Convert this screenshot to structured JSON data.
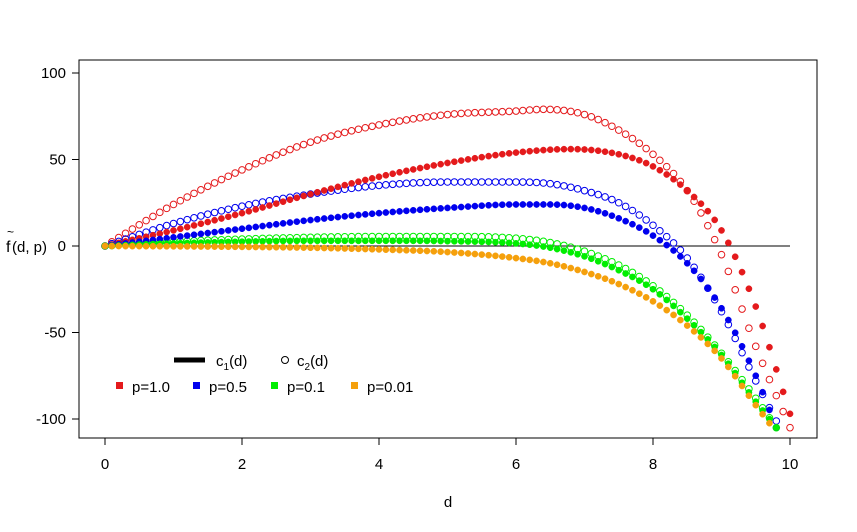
{
  "chart_data": {
    "type": "scatter",
    "title": "",
    "xlabel": "d",
    "ylabel_main": "f",
    "ylabel_tilde": "~",
    "ylabel_args": "(d, p)",
    "xlim": [
      0,
      10
    ],
    "ylim": [
      -105,
      105
    ],
    "x_ticks": [
      0,
      2,
      4,
      6,
      8,
      10
    ],
    "x_tick_labels": [
      "0",
      "2",
      "4",
      "6",
      "8",
      "10"
    ],
    "y_ticks": [
      -100,
      -50,
      0,
      50,
      100
    ],
    "y_tick_labels": [
      "-100",
      "-50",
      "0",
      "50",
      "100"
    ],
    "reference_line_y": 0,
    "legend_type": {
      "line_label": {
        "base": "c",
        "sub": "1",
        "rest": "(d)"
      },
      "point_label": {
        "base": "c",
        "sub": "2",
        "rest": "(d)"
      }
    },
    "series": [
      {
        "name": "p=1.0",
        "color": "#e41a1c",
        "c1": {
          "x": [
            0,
            1,
            2,
            3,
            4,
            5,
            6,
            6.8,
            7.5,
            8,
            8.5,
            9,
            9.5,
            10
          ],
          "y": [
            0,
            9,
            19,
            30,
            40,
            48,
            54,
            56,
            53,
            46,
            32,
            9,
            -35,
            -97
          ]
        },
        "c2": {
          "x": [
            0,
            1,
            2,
            3,
            4,
            5,
            6,
            6.4,
            7,
            7.5,
            8,
            8.5,
            9,
            9.5,
            10
          ],
          "y": [
            0,
            24,
            44,
            60,
            70,
            76,
            78,
            79,
            76,
            67,
            53,
            32,
            -5,
            -58,
            -105
          ]
        }
      },
      {
        "name": "p=0.5",
        "color": "#0000ee",
        "c1": {
          "x": [
            0,
            1,
            2,
            3,
            4,
            5,
            6,
            6.5,
            7,
            7.5,
            8,
            8.5,
            9,
            9.5,
            9.8
          ],
          "y": [
            0,
            5,
            10,
            15,
            19,
            22,
            24,
            24,
            22,
            16,
            6,
            -10,
            -36,
            -75,
            -105
          ]
        },
        "c2": {
          "x": [
            0,
            1,
            2,
            3,
            4,
            5,
            6,
            6.5,
            7,
            7.5,
            8,
            8.5,
            9,
            9.5,
            9.85
          ],
          "y": [
            0,
            13,
            23,
            30,
            35,
            37,
            37,
            36,
            32,
            25,
            12,
            -7,
            -38,
            -78,
            -105
          ]
        }
      },
      {
        "name": "p=0.1",
        "color": "#00ee00",
        "c1": {
          "x": [
            0,
            1,
            2,
            3,
            4,
            5,
            6,
            6.5,
            7,
            7.5,
            8,
            8.5,
            9,
            9.5,
            9.8
          ],
          "y": [
            0,
            1.5,
            2.5,
            3,
            3,
            2.8,
            1.5,
            -1,
            -6,
            -14,
            -25,
            -42,
            -63,
            -90,
            -105
          ]
        },
        "c2": {
          "x": [
            0,
            1,
            2,
            3,
            4,
            5,
            6,
            6.5,
            7,
            7.5,
            8,
            8.5,
            9,
            9.5,
            9.8
          ],
          "y": [
            0,
            2.5,
            4,
            5,
            5.5,
            5.5,
            4.5,
            2,
            -3,
            -11,
            -23,
            -40,
            -62,
            -88,
            -105
          ]
        }
      },
      {
        "name": "p=0.01",
        "color": "#f5a00c",
        "c1": {
          "x": [
            0,
            1,
            2,
            3,
            4,
            5,
            6,
            6.5,
            7,
            7.5,
            8,
            8.5,
            9,
            9.5,
            9.75
          ],
          "y": [
            0,
            -0.2,
            -0.5,
            -1,
            -2,
            -3.5,
            -7,
            -10,
            -15,
            -22,
            -32,
            -46,
            -65,
            -92,
            -105
          ]
        },
        "c2": null
      }
    ]
  }
}
